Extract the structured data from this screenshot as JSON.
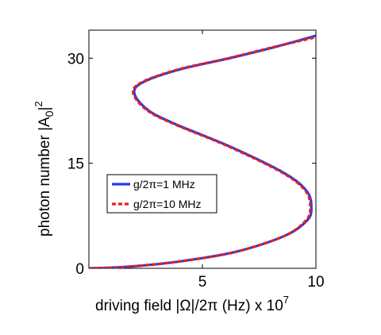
{
  "chart_data": {
    "type": "line",
    "xlabel": "driving field |Ω|/2π (Hz) x 10",
    "xlabel_exponent": "7",
    "ylabel": "photon number  |A",
    "ylabel_subscript": "0",
    "ylabel_suffix": "|",
    "ylabel_exponent": "2",
    "xlim": [
      0,
      10
    ],
    "ylim": [
      0,
      34
    ],
    "x_ticks": [
      "5",
      "10"
    ],
    "x_tick_values": [
      5,
      10
    ],
    "y_ticks": [
      "0",
      "15",
      "30"
    ],
    "y_tick_values": [
      0,
      15,
      30
    ],
    "grid": false,
    "legend_position": "center-left",
    "series": [
      {
        "name": "g/2π=1 MHz",
        "color": "#1f3ee8",
        "style": "solid",
        "x": [
          0.0,
          1.6,
          3.8,
          6.4,
          8.6,
          9.6,
          9.8,
          9.6,
          8.6,
          6.2,
          3.8,
          2.6,
          2.0,
          2.4,
          4.0,
          6.2,
          8.2,
          10.0
        ],
        "y": [
          0.0,
          0.2,
          0.9,
          2.3,
          4.6,
          6.8,
          8.6,
          11.0,
          13.6,
          17.4,
          20.6,
          22.6,
          25.0,
          26.6,
          28.4,
          30.0,
          31.6,
          33.2
        ]
      },
      {
        "name": "g/2π=10 MHz",
        "color": "#ee1c1c",
        "style": "dashed",
        "x": [
          0.0,
          1.6,
          3.8,
          6.4,
          8.6,
          9.55,
          9.75,
          9.55,
          8.55,
          6.15,
          3.75,
          2.55,
          1.95,
          2.35,
          3.95,
          6.15,
          8.15,
          10.0
        ],
        "y": [
          0.0,
          0.2,
          0.9,
          2.3,
          4.6,
          6.8,
          8.6,
          11.0,
          13.6,
          17.4,
          20.6,
          22.6,
          25.0,
          26.6,
          28.4,
          30.0,
          31.6,
          33.0
        ]
      }
    ]
  }
}
